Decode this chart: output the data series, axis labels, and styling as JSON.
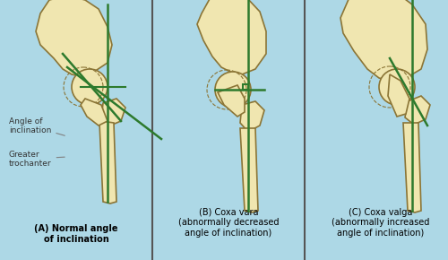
{
  "bg_color": "#add8e6",
  "bone_color": "#f0e6b0",
  "bone_outline": "#8b7536",
  "line_color": "#2d7a2d",
  "text_color": "#000000",
  "label_color": "#333333",
  "caption_A": "(A) Normal angle\nof inclination",
  "caption_B": "(B) Coxa vara\n(abnormally decreased\nangle of inclination)",
  "caption_C": "(C) Coxa valga\n(abnormally increased\nangle of inclination)",
  "label1": "Angle of\ninclination",
  "label2": "Greater\ntrochanter",
  "fig_width": 5.0,
  "fig_height": 2.9,
  "dpi": 100
}
